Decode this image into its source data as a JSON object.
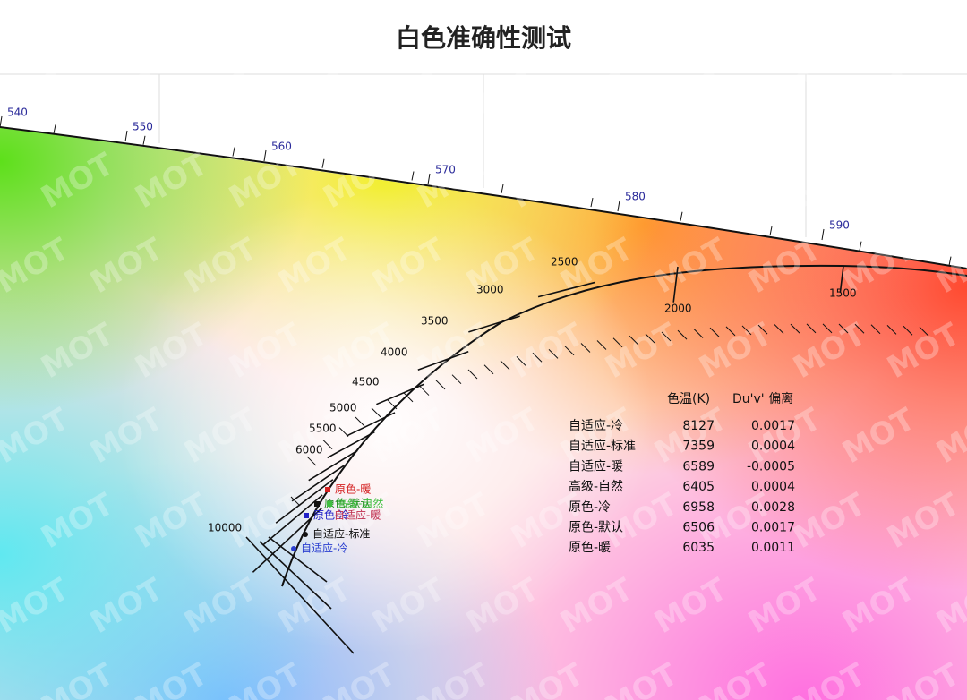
{
  "title": "白色准确性测试",
  "watermark": "MOT",
  "wavelength_labels": [
    "540",
    "550",
    "560",
    "570",
    "580",
    "590"
  ],
  "cct_labels": [
    "10000",
    "6000",
    "5500",
    "5000",
    "4500",
    "4000",
    "3500",
    "3000",
    "2500",
    "2000",
    "1500"
  ],
  "points": [
    {
      "label": "原色-暖",
      "color": "#d42020"
    },
    {
      "label": "原色-默认",
      "color": "#1a8a1a"
    },
    {
      "label": "高级-自然",
      "color": "#3fbf3f"
    },
    {
      "label": "原色-冷",
      "color": "#2020c8"
    },
    {
      "label": "自适应-暖",
      "color": "#c03050"
    },
    {
      "label": "自适应-标准",
      "color": "#111111"
    },
    {
      "label": "自适应-冷",
      "color": "#2a3fd0"
    }
  ],
  "table": {
    "header": [
      "色温(K)",
      "Du'v' 偏离"
    ],
    "rows": [
      [
        "自适应-冷",
        "8127",
        "0.0017"
      ],
      [
        "自适应-标准",
        "7359",
        "0.0004"
      ],
      [
        "自适应-暖",
        "6589",
        "-0.0005"
      ],
      [
        "高级-自然",
        "6405",
        "0.0004"
      ],
      [
        "原色-冷",
        "6958",
        "0.0028"
      ],
      [
        "原色-默认",
        "6506",
        "0.0017"
      ],
      [
        "原色-暖",
        "6035",
        "0.0011"
      ]
    ]
  }
}
